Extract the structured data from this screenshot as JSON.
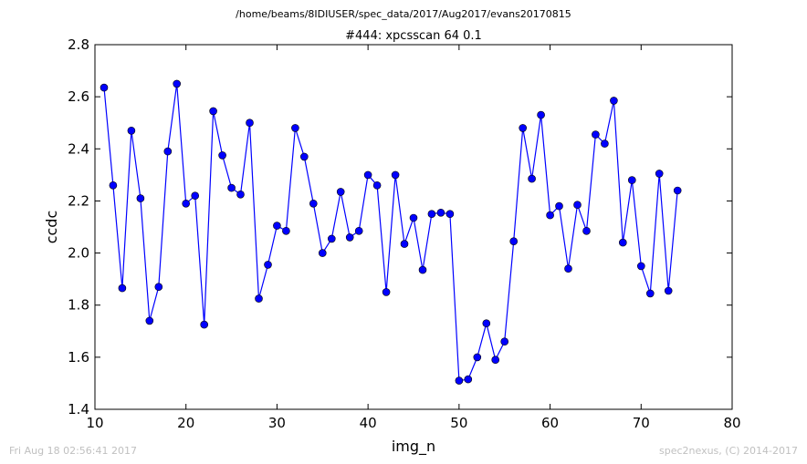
{
  "header": {
    "supertitle": "/home/beams/8IDIUSER/spec_data/2017/Aug2017/evans20170815"
  },
  "footer": {
    "timestamp": "Fri Aug 18 02:56:41 2017",
    "credit": "spec2nexus, (C) 2014-2017"
  },
  "chart_data": {
    "type": "line",
    "title": "#444: xpcsscan 64 0.1",
    "xlabel": "img_n",
    "ylabel": "ccdc",
    "xlim": [
      10,
      80
    ],
    "ylim": [
      1.4,
      2.8
    ],
    "xticks": [
      "10",
      "20",
      "30",
      "40",
      "50",
      "60",
      "70",
      "80"
    ],
    "yticks": [
      "1.4",
      "1.6",
      "1.8",
      "2.0",
      "2.2",
      "2.4",
      "2.6",
      "2.8"
    ],
    "grid": false,
    "color": "#0000ff",
    "x": [
      11,
      12,
      13,
      14,
      15,
      16,
      17,
      18,
      19,
      20,
      21,
      22,
      23,
      24,
      25,
      26,
      27,
      28,
      29,
      30,
      31,
      32,
      33,
      34,
      35,
      36,
      37,
      38,
      39,
      40,
      41,
      42,
      43,
      44,
      45,
      46,
      47,
      48,
      49,
      50,
      51,
      52,
      53,
      54,
      55,
      56,
      57,
      58,
      59,
      60,
      61,
      62,
      63,
      64,
      65,
      66,
      67,
      68,
      69,
      70,
      71,
      72,
      73,
      74
    ],
    "y": [
      2.635,
      2.26,
      1.865,
      2.47,
      2.21,
      1.74,
      1.87,
      2.39,
      2.65,
      2.19,
      2.22,
      1.725,
      2.545,
      2.375,
      2.25,
      2.225,
      2.5,
      1.825,
      1.955,
      2.105,
      2.085,
      2.48,
      2.37,
      2.19,
      2.0,
      2.055,
      2.235,
      2.06,
      2.085,
      2.3,
      2.26,
      1.85,
      2.3,
      2.035,
      2.135,
      1.935,
      2.15,
      2.155,
      2.15,
      1.51,
      1.515,
      1.6,
      1.73,
      1.59,
      1.66,
      2.045,
      2.48,
      2.285,
      2.53,
      2.145,
      2.18,
      1.94,
      2.185,
      2.085,
      2.455,
      2.42,
      2.585,
      2.04,
      2.28,
      1.95,
      1.845,
      2.305,
      1.855,
      2.24
    ]
  }
}
